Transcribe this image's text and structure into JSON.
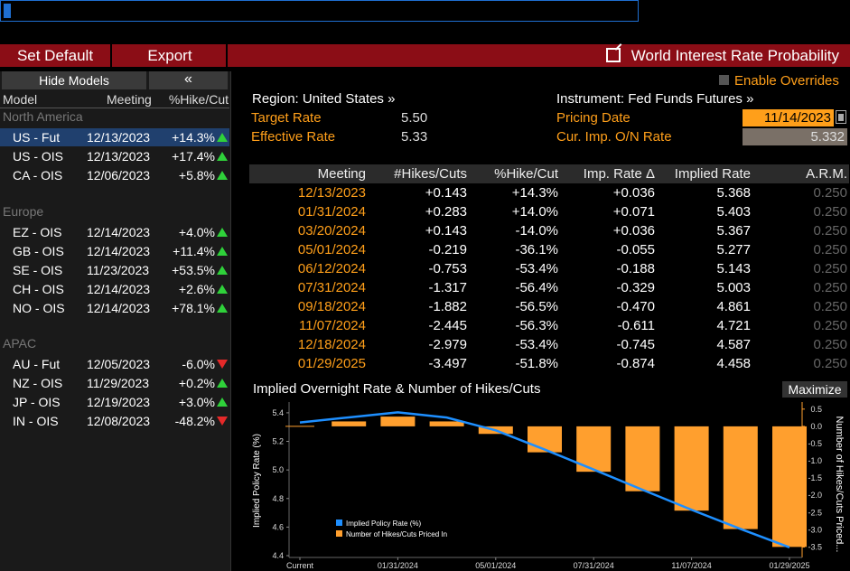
{
  "toolbar": {
    "set_default": "Set Default",
    "export": "Export",
    "window_title": "World Interest Rate Probability"
  },
  "left_panel": {
    "hide_models": "Hide Models",
    "collapse": "«",
    "columns": [
      "Model",
      "Meeting",
      "%Hike/Cut"
    ],
    "regions": [
      {
        "name": "North America",
        "models": [
          {
            "name": "US - Fut",
            "meeting": "12/13/2023",
            "pct": "+14.3%",
            "dir": "up",
            "selected": true
          },
          {
            "name": "US - OIS",
            "meeting": "12/13/2023",
            "pct": "+17.4%",
            "dir": "up"
          },
          {
            "name": "CA - OIS",
            "meeting": "12/06/2023",
            "pct": "+5.8%",
            "dir": "up"
          }
        ]
      },
      {
        "name": "Europe",
        "models": [
          {
            "name": "EZ - OIS",
            "meeting": "12/14/2023",
            "pct": "+4.0%",
            "dir": "up"
          },
          {
            "name": "GB - OIS",
            "meeting": "12/14/2023",
            "pct": "+11.4%",
            "dir": "up"
          },
          {
            "name": "SE - OIS",
            "meeting": "11/23/2023",
            "pct": "+53.5%",
            "dir": "up"
          },
          {
            "name": "CH - OIS",
            "meeting": "12/14/2023",
            "pct": "+2.6%",
            "dir": "up"
          },
          {
            "name": "NO - OIS",
            "meeting": "12/14/2023",
            "pct": "+78.1%",
            "dir": "up"
          }
        ]
      },
      {
        "name": "APAC",
        "models": [
          {
            "name": "AU - Fut",
            "meeting": "12/05/2023",
            "pct": "-6.0%",
            "dir": "down"
          },
          {
            "name": "NZ - OIS",
            "meeting": "11/29/2023",
            "pct": "+0.2%",
            "dir": "up"
          },
          {
            "name": "JP - OIS",
            "meeting": "12/19/2023",
            "pct": "+3.0%",
            "dir": "up"
          },
          {
            "name": "IN - OIS",
            "meeting": "12/08/2023",
            "pct": "-48.2%",
            "dir": "down"
          }
        ]
      }
    ]
  },
  "overrides": {
    "label": "Enable Overrides"
  },
  "info": {
    "region": "Region: United States »",
    "instrument": "Instrument: Fed Funds Futures »",
    "target_rate_label": "Target Rate",
    "target_rate": "5.50",
    "effective_rate_label": "Effective Rate",
    "effective_rate": "5.33",
    "pricing_date_label": "Pricing Date",
    "pricing_date": "11/14/2023",
    "cur_imp_label": "Cur. Imp. O/N Rate",
    "cur_imp": "5.332"
  },
  "table": {
    "columns": [
      "Meeting",
      "#Hikes/Cuts",
      "%Hike/Cut",
      "Imp. Rate Δ",
      "Implied Rate",
      "A.R.M."
    ],
    "rows": [
      [
        "12/13/2023",
        "+0.143",
        "+14.3%",
        "+0.036",
        "5.368",
        "0.250"
      ],
      [
        "01/31/2024",
        "+0.283",
        "+14.0%",
        "+0.071",
        "5.403",
        "0.250"
      ],
      [
        "03/20/2024",
        "+0.143",
        "-14.0%",
        "+0.036",
        "5.367",
        "0.250"
      ],
      [
        "05/01/2024",
        "-0.219",
        "-36.1%",
        "-0.055",
        "5.277",
        "0.250"
      ],
      [
        "06/12/2024",
        "-0.753",
        "-53.4%",
        "-0.188",
        "5.143",
        "0.250"
      ],
      [
        "07/31/2024",
        "-1.317",
        "-56.4%",
        "-0.329",
        "5.003",
        "0.250"
      ],
      [
        "09/18/2024",
        "-1.882",
        "-56.5%",
        "-0.470",
        "4.861",
        "0.250"
      ],
      [
        "11/07/2024",
        "-2.445",
        "-56.3%",
        "-0.611",
        "4.721",
        "0.250"
      ],
      [
        "12/18/2024",
        "-2.979",
        "-53.4%",
        "-0.745",
        "4.587",
        "0.250"
      ],
      [
        "01/29/2025",
        "-3.497",
        "-51.8%",
        "-0.874",
        "4.458",
        "0.250"
      ]
    ]
  },
  "chart_header": {
    "title": "Implied Overnight Rate & Number of Hikes/Cuts",
    "maximize": "Maximize"
  },
  "chart_data": {
    "type": "bar",
    "categories": [
      "Current",
      "12/13/2023",
      "01/31/2024",
      "03/20/2024",
      "05/01/2024",
      "06/12/2024",
      "07/31/2024",
      "09/18/2024",
      "11/07/2024",
      "12/18/2024",
      "01/29/2025"
    ],
    "x_tick_labels": [
      "Current",
      "01/31/2024",
      "05/01/2024",
      "07/31/2024",
      "11/07/2024",
      "01/29/2025"
    ],
    "series": [
      {
        "name": "Implied Policy Rate (%)",
        "type": "line",
        "axis": "left",
        "color": "#1e8fff",
        "values": [
          5.332,
          5.368,
          5.403,
          5.367,
          5.277,
          5.143,
          5.003,
          4.861,
          4.721,
          4.587,
          4.458
        ]
      },
      {
        "name": "Number of Hikes/Cuts Priced In",
        "type": "bar",
        "axis": "right",
        "color": "#ff9f2e",
        "values": [
          0.0,
          0.143,
          0.283,
          0.143,
          -0.219,
          -0.753,
          -1.317,
          -1.882,
          -2.445,
          -2.979,
          -3.497
        ]
      }
    ],
    "ylabel_left": "Implied Policy Rate (%)",
    "ylabel_right": "Number of Hikes/Cuts Priced...",
    "left_ticks": [
      "5.4",
      "5.2",
      "5.0",
      "4.8",
      "4.6",
      "4.4"
    ],
    "right_ticks": [
      "0.5",
      "0.0",
      "-0.5",
      "-1.0",
      "-1.5",
      "-2.0",
      "-2.5",
      "-3.0",
      "-3.5"
    ],
    "ylim_left": [
      4.4,
      5.45
    ],
    "ylim_right": [
      -3.75,
      0.6
    ],
    "legend": "bottom-left",
    "grid": false
  }
}
